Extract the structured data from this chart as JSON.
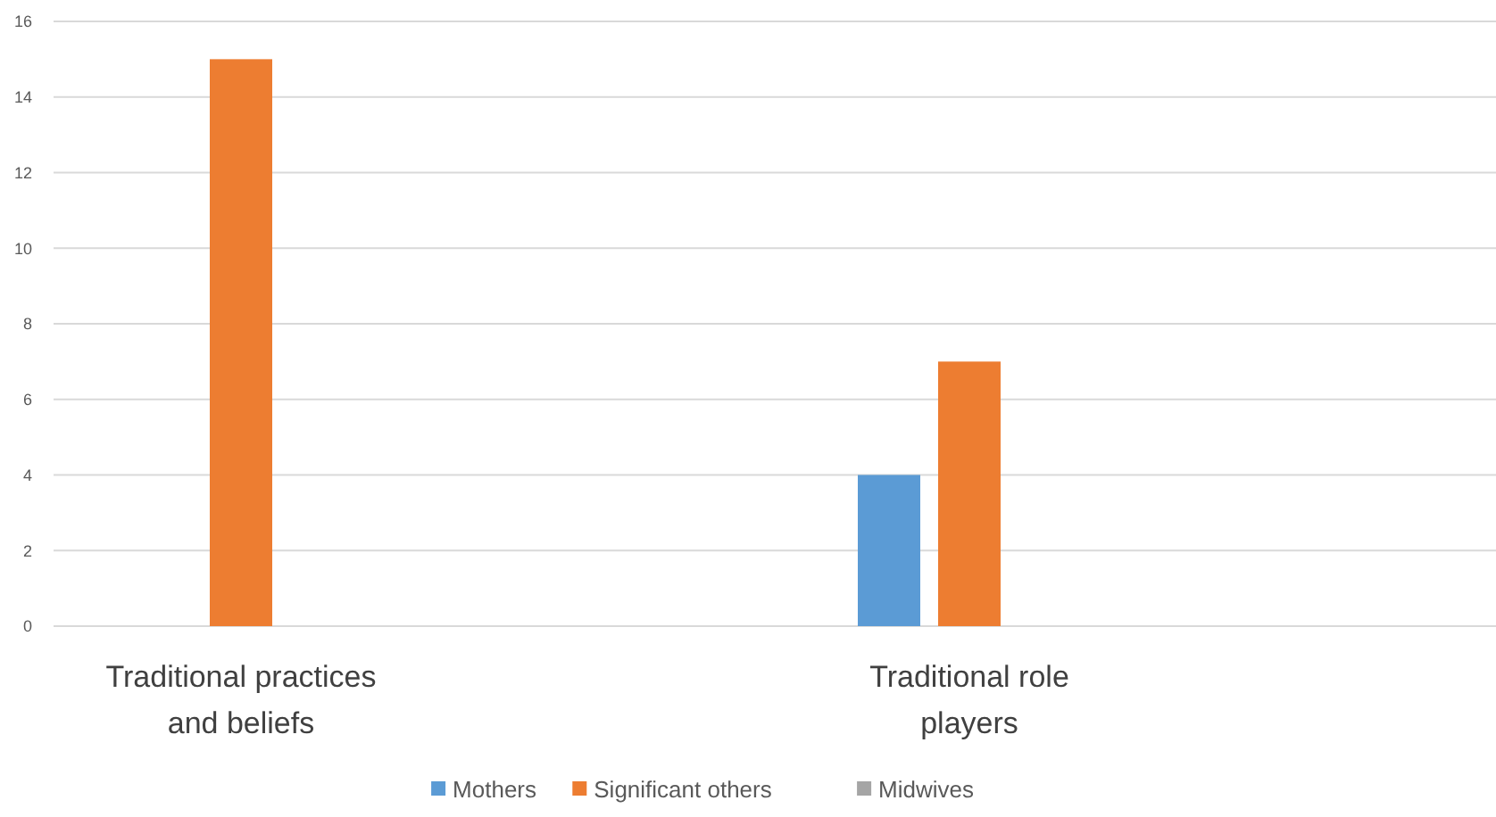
{
  "chart_data": {
    "type": "bar",
    "categories": [
      "Traditional practices and beliefs",
      "Traditional role players"
    ],
    "series": [
      {
        "name": "Mothers",
        "color": "#5b9bd5",
        "values": [
          0,
          4
        ]
      },
      {
        "name": "Significant others",
        "color": "#ed7d31",
        "values": [
          15,
          7
        ]
      },
      {
        "name": "Midwives",
        "color": "#a5a5a5",
        "values": [
          0,
          0
        ]
      }
    ],
    "ylim": [
      0,
      16
    ],
    "yticks": [
      0,
      2,
      4,
      6,
      8,
      10,
      12,
      14,
      16
    ],
    "grid": "y",
    "legend": "bottom"
  }
}
